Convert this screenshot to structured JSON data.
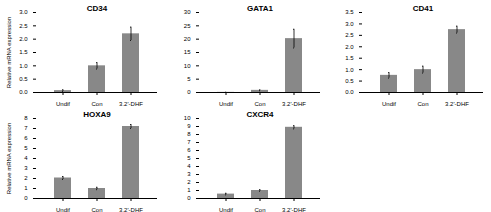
{
  "chart_data": [
    {
      "type": "bar",
      "title": "CD34",
      "ylabel": "Relative mRNA expression",
      "categories": [
        "Undif",
        "Con",
        "3,2'-DHF"
      ],
      "values": [
        0.07,
        1.0,
        2.2
      ],
      "errors": [
        0.03,
        0.12,
        0.25
      ],
      "color": "#888888",
      "ylim": [
        0,
        3
      ],
      "yticks": [
        {
          "value": 0,
          "label": "0.0"
        },
        0.5,
        {
          "value": 1.0,
          "label": "1.0"
        },
        1.5,
        {
          "value": 2.0,
          "label": "2.0"
        },
        2.5,
        {
          "value": 3.0,
          "label": "3.0"
        }
      ]
    },
    {
      "type": "bar",
      "title": "GATA1",
      "categories": [
        "Undif",
        "Con",
        "3,2'-DHF"
      ],
      "values": [
        0.05,
        0.8,
        20.2
      ],
      "errors": [
        0.02,
        0.15,
        3.5
      ],
      "color": "#888888",
      "ylim": [
        0,
        30
      ],
      "yticks": [
        0,
        5,
        10,
        15,
        20,
        25,
        30
      ]
    },
    {
      "type": "bar",
      "title": "CD41",
      "categories": [
        "Undif",
        "Con",
        "3,2'-DHF"
      ],
      "values": [
        0.75,
        1.0,
        2.75
      ],
      "errors": [
        0.12,
        0.15,
        0.15
      ],
      "color": "#888888",
      "ylim": [
        0,
        3.5
      ],
      "yticks": [
        {
          "value": 0,
          "label": "0.0"
        },
        0.5,
        {
          "value": 1.0,
          "label": "1.0"
        },
        1.5,
        {
          "value": 2.0,
          "label": "2.0"
        },
        2.5,
        {
          "value": 3.0,
          "label": "3.0"
        },
        3.5
      ]
    },
    {
      "type": "bar",
      "title": "HOXA9",
      "ylabel": "Relative mRNA expression",
      "categories": [
        "Undif",
        "Con",
        "3,2'-DHF"
      ],
      "values": [
        2.05,
        1.0,
        7.2
      ],
      "errors": [
        0.15,
        0.12,
        0.2
      ],
      "color": "#888888",
      "ylim": [
        0,
        8
      ],
      "yticks": [
        0,
        1,
        2,
        3,
        4,
        5,
        6,
        7,
        8
      ]
    },
    {
      "type": "bar",
      "title": "CXCR4",
      "categories": [
        "Undif",
        "Con",
        "3,2'-DHF"
      ],
      "values": [
        0.55,
        1.0,
        8.9
      ],
      "errors": [
        0.1,
        0.1,
        0.2
      ],
      "color": "#888888",
      "ylim": [
        0,
        10
      ],
      "yticks": [
        0,
        1,
        2,
        3,
        4,
        5,
        6,
        7,
        8,
        9,
        10
      ]
    }
  ]
}
